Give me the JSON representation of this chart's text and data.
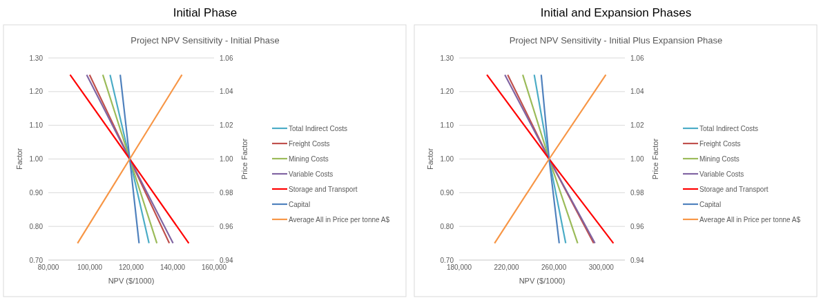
{
  "chart_data": [
    {
      "type": "line",
      "title": "Initial Phase",
      "subtitle": "Project NPV Sensitivity - Initial Phase",
      "xlabel": "NPV ($/1000)",
      "ylabel": "Factor",
      "y2label": "Price Factor",
      "xlim": [
        80000,
        160000
      ],
      "xticks": [
        {
          "value": 80000,
          "label": "80,000"
        },
        {
          "value": 100000,
          "label": "100,000"
        },
        {
          "value": 120000,
          "label": "120,000"
        },
        {
          "value": 140000,
          "label": "140,000"
        },
        {
          "value": 160000,
          "label": "160,000"
        }
      ],
      "ylim": [
        0.7,
        1.3
      ],
      "yticks": [
        {
          "value": 0.7,
          "label": "0.70"
        },
        {
          "value": 0.8,
          "label": "0.80"
        },
        {
          "value": 0.9,
          "label": "0.90"
        },
        {
          "value": 1.0,
          "label": "1.00"
        },
        {
          "value": 1.1,
          "label": "1.10"
        },
        {
          "value": 1.2,
          "label": "1.20"
        },
        {
          "value": 1.3,
          "label": "1.30"
        }
      ],
      "y2lim": [
        0.94,
        1.06
      ],
      "y2ticks": [
        {
          "value": 0.94,
          "label": "0.94"
        },
        {
          "value": 0.96,
          "label": "0.96"
        },
        {
          "value": 0.98,
          "label": "0.98"
        },
        {
          "value": 1.0,
          "label": "1.00"
        },
        {
          "value": 1.02,
          "label": "1.02"
        },
        {
          "value": 1.04,
          "label": "1.04"
        },
        {
          "value": 1.06,
          "label": "1.06"
        }
      ],
      "grid": "y",
      "legend": "right",
      "marker": "none",
      "series": [
        {
          "name": "Total Indirect Costs",
          "color": "#4bacc6",
          "x": [
            109800,
            119300,
            128600
          ],
          "values": [
            1.25,
            1.0,
            0.75
          ]
        },
        {
          "name": "Freight Costs",
          "color": "#c0504d",
          "x": [
            99900,
            119300,
            138400
          ],
          "values": [
            1.25,
            1.0,
            0.75
          ]
        },
        {
          "name": "Mining Costs",
          "color": "#9bbb59",
          "x": [
            106300,
            119300,
            132400
          ],
          "values": [
            1.25,
            1.0,
            0.75
          ]
        },
        {
          "name": "Variable Costs",
          "color": "#8064a2",
          "x": [
            98500,
            119300,
            140200
          ],
          "values": [
            1.25,
            1.0,
            0.75
          ]
        },
        {
          "name": "Storage and Transport",
          "color": "#ff0000",
          "x": [
            90500,
            119300,
            147800
          ],
          "values": [
            1.25,
            1.0,
            0.75
          ]
        },
        {
          "name": "Capital",
          "color": "#4f81bd",
          "x": [
            114700,
            119300,
            123800
          ],
          "values": [
            1.25,
            1.0,
            0.75
          ]
        },
        {
          "name": "Average All in Price per tonne A$",
          "color": "#f79646",
          "axis": "y2",
          "x": [
            94100,
            119300,
            144500
          ],
          "values": [
            0.95,
            1.0,
            1.05
          ]
        }
      ]
    },
    {
      "type": "line",
      "title": "Initial and Expansion Phases",
      "subtitle": "Project NPV Sensitivity - Initial Plus Expansion Phase",
      "xlabel": "NPV ($/1000)",
      "ylabel": "Factor",
      "y2label": "Price Factor",
      "xlim": [
        180000,
        320000
      ],
      "xticks": [
        {
          "value": 180000,
          "label": "180,000"
        },
        {
          "value": 220000,
          "label": "220,000"
        },
        {
          "value": 260000,
          "label": "260,000"
        },
        {
          "value": 300000,
          "label": "300,000"
        }
      ],
      "ylim": [
        0.7,
        1.3
      ],
      "yticks": [
        {
          "value": 0.7,
          "label": "0.70"
        },
        {
          "value": 0.8,
          "label": "0.80"
        },
        {
          "value": 0.9,
          "label": "0.90"
        },
        {
          "value": 1.0,
          "label": "1.00"
        },
        {
          "value": 1.1,
          "label": "1.10"
        },
        {
          "value": 1.2,
          "label": "1.20"
        },
        {
          "value": 1.3,
          "label": "1.30"
        }
      ],
      "y2lim": [
        0.94,
        1.06
      ],
      "y2ticks": [
        {
          "value": 0.94,
          "label": "0.94"
        },
        {
          "value": 0.96,
          "label": "0.96"
        },
        {
          "value": 0.98,
          "label": "0.98"
        },
        {
          "value": 1.0,
          "label": "1.00"
        },
        {
          "value": 1.02,
          "label": "1.02"
        },
        {
          "value": 1.04,
          "label": "1.04"
        },
        {
          "value": 1.06,
          "label": "1.06"
        }
      ],
      "grid": "y",
      "legend": "right",
      "marker": "none",
      "series": [
        {
          "name": "Total Indirect Costs",
          "color": "#4bacc6",
          "x": [
            243400,
            256000,
            270000
          ],
          "values": [
            1.25,
            1.0,
            0.75
          ]
        },
        {
          "name": "Freight Costs",
          "color": "#c0504d",
          "x": [
            221000,
            256000,
            293600
          ],
          "values": [
            1.25,
            1.0,
            0.75
          ]
        },
        {
          "name": "Mining Costs",
          "color": "#9bbb59",
          "x": [
            233700,
            256000,
            280100
          ],
          "values": [
            1.25,
            1.0,
            0.75
          ]
        },
        {
          "name": "Variable Costs",
          "color": "#8064a2",
          "x": [
            218600,
            256000,
            294700
          ],
          "values": [
            1.25,
            1.0,
            0.75
          ]
        },
        {
          "name": "Storage and Transport",
          "color": "#ff0000",
          "x": [
            203400,
            256000,
            310300
          ],
          "values": [
            1.25,
            1.0,
            0.75
          ]
        },
        {
          "name": "Capital",
          "color": "#4f81bd",
          "x": [
            249300,
            256000,
            264500
          ],
          "values": [
            1.25,
            1.0,
            0.75
          ]
        },
        {
          "name": "Average All in Price per tonne A$",
          "color": "#f79646",
          "axis": "y2",
          "x": [
            209900,
            256000,
            303900
          ],
          "values": [
            0.95,
            1.0,
            1.05
          ]
        }
      ]
    }
  ]
}
